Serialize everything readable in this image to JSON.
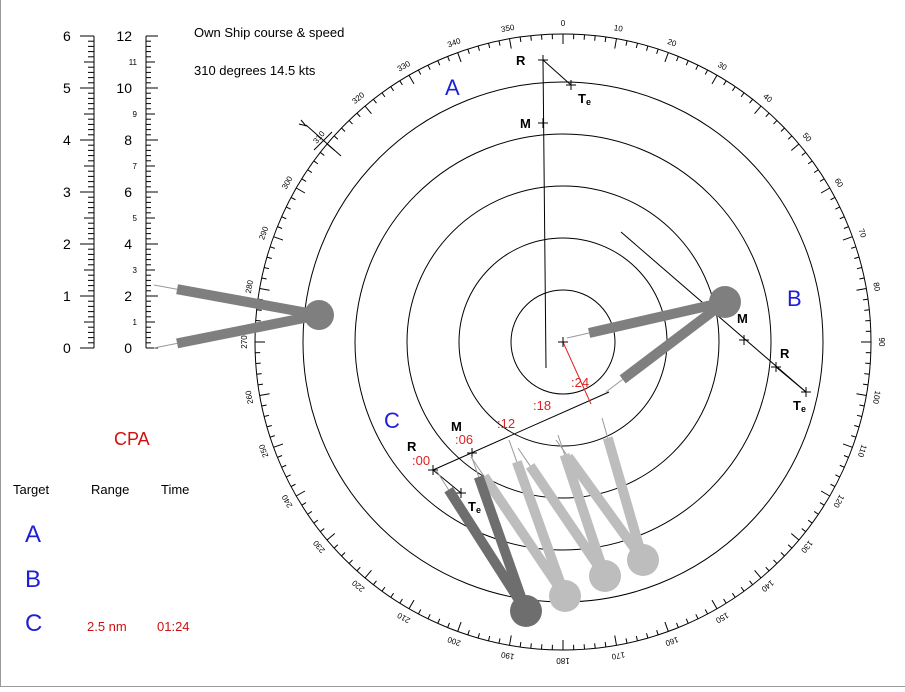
{
  "own_ship": {
    "title": "Own Ship course & speed",
    "value": "310 degrees  14.5 kts",
    "heading_deg": 310
  },
  "scale": {
    "range_major": [
      "0",
      "1",
      "2",
      "3",
      "4",
      "5",
      "6"
    ],
    "speed_major": [
      "0",
      "2",
      "4",
      "6",
      "8",
      "10",
      "12"
    ],
    "speed_minor": [
      "1",
      "3",
      "5",
      "7",
      "9",
      "11"
    ]
  },
  "compass": {
    "bearing_labels": [
      "0",
      "10",
      "20",
      "30",
      "40",
      "50",
      "60",
      "70",
      "80",
      "90",
      "100",
      "110",
      "120",
      "130",
      "140",
      "150",
      "160",
      "170",
      "180",
      "190",
      "200",
      "210",
      "220",
      "230",
      "240",
      "250",
      "260",
      "270",
      "280",
      "290",
      "300",
      "310",
      "320",
      "330",
      "340",
      "350"
    ]
  },
  "targets": {
    "A": {
      "label": "A"
    },
    "B": {
      "label": "B"
    },
    "C": {
      "label": "C"
    }
  },
  "plot_marks": {
    "R": "R",
    "M": "M",
    "Te_main": "T",
    "Te_sub": "e"
  },
  "time_marks": [
    ":00",
    ":06",
    ":12",
    ":18",
    ":24"
  ],
  "cpa_table": {
    "title": "CPA",
    "headers": {
      "target": "Target",
      "range": "Range",
      "time": "Time"
    },
    "rows": [
      {
        "target": "A",
        "range": "",
        "time": ""
      },
      {
        "target": "B",
        "range": "",
        "time": ""
      },
      {
        "target": "C",
        "range": "2.5 nm",
        "time": "01:24"
      }
    ]
  },
  "colors": {
    "target_letter": "#1f1fd6",
    "time_mark": "#e02020",
    "cpa_title": "#d01010",
    "divider_dark": "#6e6e6e",
    "divider_mid": "#7f7f7f",
    "divider_light": "#bdbdbd",
    "ink": "#000000"
  }
}
